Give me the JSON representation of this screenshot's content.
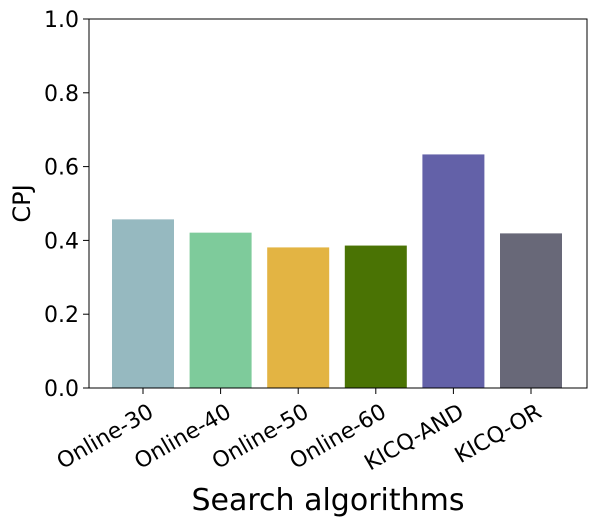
{
  "chart_data": {
    "type": "bar",
    "title": "",
    "xlabel": "Search algorithms",
    "ylabel": "CPJ",
    "categories": [
      "Online-30",
      "Online-40",
      "Online-50",
      "Online-60",
      "KICQ-AND",
      "KICQ-OR"
    ],
    "values": [
      0.457,
      0.421,
      0.381,
      0.386,
      0.633,
      0.419
    ],
    "colors": [
      "#96b9c0",
      "#7ecb9b",
      "#e3b443",
      "#4a7304",
      "#6361a8",
      "#686878"
    ],
    "ylim": [
      0,
      1.0
    ],
    "yticks": [
      "0.0",
      "0.2",
      "0.4",
      "0.6",
      "0.8",
      "1.0"
    ],
    "grid": false,
    "legend": "none"
  }
}
